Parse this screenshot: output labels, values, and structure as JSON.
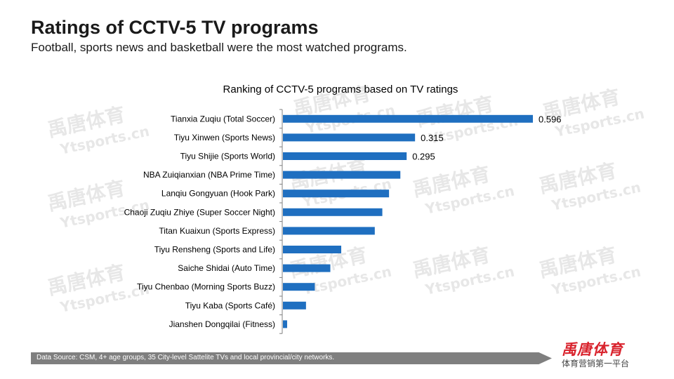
{
  "header": {
    "title": "Ratings of CCTV-5 TV programs",
    "subtitle": "Football, sports news and basketball were the most watched programs."
  },
  "watermark": {
    "cn": "禹唐体育",
    "en": "Ytsports.cn"
  },
  "footer": {
    "source": "Data Source: CSM, 4+ age groups, 35 City-level Sattelite TVs and local provincial/city networks."
  },
  "logo": {
    "main": "禹唐体育",
    "sub": "体育营销第一平台"
  },
  "colors": {
    "bar": "#1f6fc0",
    "axis": "#808080",
    "footer": "#7f7f7f",
    "logo": "#d9232d"
  },
  "chart_data": {
    "type": "bar",
    "orientation": "horizontal",
    "title": "Ranking of CCTV-5 programs based on TV ratings",
    "xlabel": "",
    "ylabel": "",
    "xlim": [
      0,
      0.6
    ],
    "grid": false,
    "categories": [
      "Tianxia Zuqiu (Total Soccer)",
      "Tiyu Xinwen (Sports News)",
      "Tiyu Shijie (Sports World)",
      "NBA Zuiqianxian (NBA Prime Time)",
      "Lanqiu Gongyuan (Hook Park)",
      "Chaoji Zuqiu Zhiye (Super Soccer Night)",
      "Titan Kuaixun (Sports Express)",
      "Tiyu Rensheng (Sports and Life)",
      "Saiche Shidai (Auto Time)",
      "Tiyu Chenbao (Morning Sports Buzz)",
      "Tiyu Kaba (Sports Café)",
      "Jianshen Dongqilai (Fitness)"
    ],
    "values": [
      0.596,
      0.315,
      0.295,
      0.28,
      0.253,
      0.237,
      0.219,
      0.139,
      0.113,
      0.076,
      0.055,
      0.01
    ],
    "data_labels": [
      "0.596",
      "0.315",
      "0.295",
      "",
      "",
      "",
      "",
      "",
      "",
      "",
      "",
      ""
    ]
  }
}
